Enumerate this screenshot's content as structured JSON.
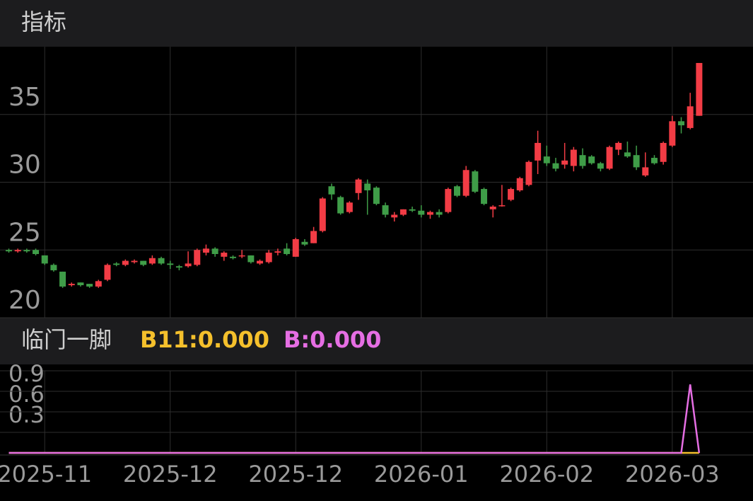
{
  "chart_data": [
    {
      "type": "candlestick",
      "title": "指标",
      "categories": [
        null,
        null,
        null,
        null,
        "2025-11",
        null,
        null,
        null,
        null,
        null,
        null,
        null,
        null,
        null,
        null,
        null,
        null,
        null,
        "2025-12",
        null,
        null,
        null,
        null,
        null,
        null,
        null,
        null,
        null,
        null,
        null,
        null,
        null,
        "2025-12",
        null,
        null,
        null,
        null,
        null,
        null,
        null,
        null,
        null,
        null,
        null,
        null,
        null,
        "2026-01",
        null,
        null,
        null,
        null,
        null,
        null,
        null,
        null,
        null,
        null,
        null,
        null,
        null,
        "2026-02",
        null,
        null,
        null,
        null,
        null,
        null,
        null,
        null,
        null,
        null,
        null,
        null,
        null,
        "2026-03",
        null,
        null,
        null
      ],
      "open": [
        25.0,
        24.9,
        25.0,
        25.0,
        24.6,
        23.9,
        23.4,
        22.4,
        22.6,
        22.5,
        22.3,
        22.8,
        24.0,
        23.9,
        24.1,
        24.2,
        24.0,
        24.4,
        24.0,
        23.8,
        23.8,
        23.9,
        24.8,
        25.1,
        24.5,
        24.5,
        24.6,
        24.6,
        24.0,
        24.1,
        24.8,
        25.1,
        24.5,
        25.6,
        25.5,
        26.4,
        29.7,
        28.9,
        27.8,
        29.2,
        29.9,
        29.6,
        28.3,
        27.4,
        27.6,
        28.0,
        27.9,
        27.6,
        27.8,
        27.8,
        29.7,
        29.0,
        30.8,
        29.5,
        28.0,
        28.3,
        28.7,
        29.4,
        29.8,
        31.6,
        31.9,
        31.4,
        31.3,
        31.2,
        32.0,
        31.9,
        31.4,
        31.0,
        32.4,
        32.2,
        32.0,
        30.5,
        31.8,
        31.5,
        32.7,
        34.5,
        34.0,
        34.9
      ],
      "high": [
        25.1,
        25.1,
        25.1,
        25.1,
        24.6,
        24.0,
        23.4,
        22.6,
        22.6,
        22.5,
        22.8,
        24.0,
        24.1,
        24.3,
        24.3,
        24.2,
        24.6,
        24.5,
        24.2,
        23.9,
        24.9,
        25.1,
        25.4,
        25.2,
        24.9,
        24.6,
        25.0,
        24.6,
        24.3,
        25.0,
        25.1,
        25.5,
        25.9,
        25.8,
        26.7,
        28.9,
        29.9,
        29.0,
        28.6,
        30.3,
        30.2,
        29.7,
        28.5,
        27.8,
        28.0,
        28.2,
        28.3,
        27.9,
        28.0,
        29.6,
        29.8,
        31.2,
        30.9,
        29.6,
        28.3,
        29.8,
        29.6,
        30.4,
        31.6,
        33.8,
        32.7,
        31.8,
        32.9,
        32.6,
        32.5,
        32.0,
        31.5,
        32.7,
        33.0,
        33.0,
        32.7,
        32.2,
        32.0,
        33.0,
        34.9,
        34.8,
        36.6,
        38.8
      ],
      "low": [
        24.8,
        24.8,
        24.8,
        24.6,
        23.9,
        23.4,
        22.2,
        22.3,
        22.3,
        22.2,
        22.2,
        22.7,
        23.8,
        23.8,
        24.0,
        23.8,
        23.9,
        23.9,
        23.6,
        23.5,
        23.7,
        23.8,
        24.6,
        24.5,
        24.2,
        24.3,
        24.4,
        24.0,
        23.9,
        24.0,
        24.6,
        24.6,
        24.5,
        25.3,
        25.5,
        26.3,
        28.7,
        27.6,
        27.7,
        28.7,
        27.6,
        28.3,
        27.4,
        27.1,
        27.5,
        27.8,
        27.4,
        27.3,
        27.4,
        27.7,
        28.9,
        28.9,
        29.2,
        28.3,
        27.4,
        28.2,
        28.6,
        29.3,
        29.7,
        30.6,
        31.2,
        30.8,
        31.0,
        30.8,
        31.0,
        31.3,
        30.8,
        30.9,
        32.0,
        31.8,
        30.9,
        30.4,
        31.3,
        31.3,
        32.6,
        33.6,
        33.9,
        34.9
      ],
      "close": [
        24.9,
        25.0,
        24.9,
        24.7,
        24.0,
        23.5,
        22.3,
        22.5,
        22.4,
        22.3,
        22.7,
        23.9,
        23.9,
        24.2,
        24.2,
        23.9,
        24.4,
        24.0,
        23.9,
        23.7,
        24.0,
        25.0,
        25.1,
        24.7,
        24.8,
        24.4,
        24.6,
        24.1,
        24.2,
        24.8,
        24.9,
        24.7,
        25.8,
        25.4,
        26.4,
        28.8,
        29.1,
        27.7,
        28.5,
        30.2,
        29.4,
        28.4,
        27.6,
        27.6,
        28.0,
        27.9,
        27.6,
        27.8,
        27.6,
        29.5,
        29.0,
        30.9,
        29.3,
        28.4,
        28.2,
        28.3,
        29.5,
        30.3,
        31.5,
        32.9,
        31.4,
        31.0,
        31.6,
        32.4,
        31.2,
        31.4,
        31.0,
        32.6,
        32.9,
        31.9,
        31.1,
        31.1,
        31.4,
        32.9,
        34.5,
        34.2,
        35.6,
        38.8
      ],
      "up_color": "#f23c45",
      "down_color": "#3f9d48",
      "ylim": [
        20,
        40
      ],
      "yticks": [
        20,
        25,
        30,
        35
      ],
      "grid": true
    },
    {
      "type": "line",
      "title": "临门一脚",
      "legend_separator": ":",
      "series": [
        {
          "name": "B11",
          "color": "#f5c02c",
          "value_label": "0.000",
          "values": [
            0,
            0,
            0,
            0,
            0,
            0,
            0,
            0,
            0,
            0,
            0,
            0,
            0,
            0,
            0,
            0,
            0,
            0,
            0,
            0,
            0,
            0,
            0,
            0,
            0,
            0,
            0,
            0,
            0,
            0,
            0,
            0,
            0,
            0,
            0,
            0,
            0,
            0,
            0,
            0,
            0,
            0,
            0,
            0,
            0,
            0,
            0,
            0,
            0,
            0,
            0,
            0,
            0,
            0,
            0,
            0,
            0,
            0,
            0,
            0,
            0,
            0,
            0,
            0,
            0,
            0,
            0,
            0,
            0,
            0,
            0,
            0,
            0,
            0,
            0,
            0,
            0,
            0
          ]
        },
        {
          "name": "B",
          "color": "#e56ee3",
          "value_label": "0.000",
          "values": [
            0,
            0,
            0,
            0,
            0,
            0,
            0,
            0,
            0,
            0,
            0,
            0,
            0,
            0,
            0,
            0,
            0,
            0,
            0,
            0,
            0,
            0,
            0,
            0,
            0,
            0,
            0,
            0,
            0,
            0,
            0,
            0,
            0,
            0,
            0,
            0,
            0,
            0,
            0,
            0,
            0,
            0,
            0,
            0,
            0,
            0,
            0,
            0,
            0,
            0,
            0,
            0,
            0,
            0,
            0,
            0,
            0,
            0,
            0,
            0,
            0,
            0,
            0,
            0,
            0,
            0,
            0,
            0,
            0,
            0,
            0,
            0,
            0,
            0,
            0,
            0,
            1.0,
            0
          ]
        }
      ],
      "ylim": [
        0,
        1.2
      ],
      "yticks": [
        0.3,
        0.6,
        0.9
      ],
      "grid": true
    }
  ]
}
